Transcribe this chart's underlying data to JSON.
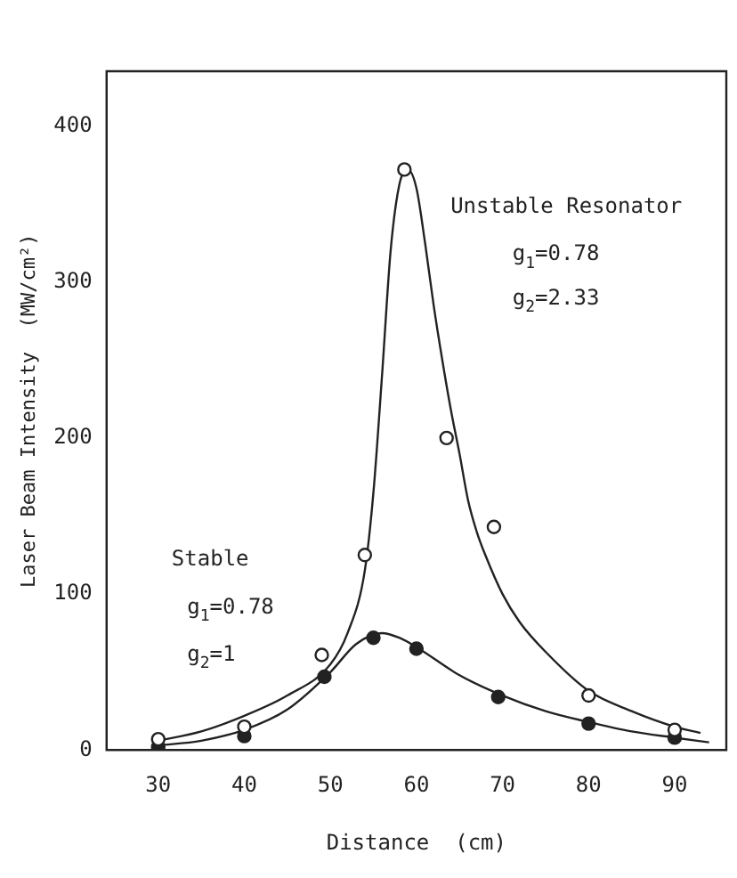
{
  "chart_data": {
    "type": "scatter",
    "xlabel": "Distance  (cm)",
    "ylabel": "Laser Beam Intensity  (MW/cm²)",
    "xlim": [
      24,
      96
    ],
    "xticks": [
      30,
      40,
      50,
      60,
      70,
      80,
      90
    ],
    "ylim": [
      0,
      435
    ],
    "yticks": [
      0,
      100,
      200,
      300,
      400
    ],
    "grid": false,
    "legend": false,
    "series": [
      {
        "type": "scatter",
        "marker": "circle",
        "color": "#ffffff",
        "x": [
          30,
          40,
          49,
          54,
          58.6,
          63.5,
          69,
          80,
          90
        ],
        "values": [
          7,
          15,
          61,
          125,
          372,
          200,
          143,
          35,
          13
        ]
      },
      {
        "type": "scatter",
        "marker": "circle",
        "color": "#222222",
        "x": [
          30,
          40,
          49.3,
          55,
          60,
          69.5,
          80,
          90
        ],
        "values": [
          2,
          9,
          47,
          72,
          65,
          34,
          17,
          8
        ]
      },
      {
        "type": "line",
        "marker": "none",
        "color": "#222222",
        "x": [
          30,
          35,
          40,
          45,
          50,
          52,
          54,
          55,
          56,
          57,
          58,
          59,
          60,
          61,
          62,
          63,
          64,
          65,
          66,
          67,
          68,
          70,
          72,
          75,
          80,
          85,
          90,
          93
        ],
        "values": [
          6,
          12,
          22,
          35,
          55,
          75,
          115,
          165,
          240,
          320,
          362,
          372,
          360,
          325,
          285,
          250,
          218,
          190,
          160,
          140,
          125,
          100,
          82,
          63,
          38,
          25,
          15,
          11
        ]
      },
      {
        "type": "line",
        "marker": "none",
        "color": "#222222",
        "x": [
          30,
          35,
          40,
          45,
          50,
          53,
          56,
          58,
          60,
          65,
          70,
          75,
          80,
          85,
          90,
          94
        ],
        "values": [
          3,
          6,
          13,
          26,
          50,
          68,
          75,
          72,
          66,
          48,
          35,
          25,
          18,
          12,
          8,
          5
        ]
      }
    ],
    "annotations": [
      "Unstable Resonator",
      "g$_{1}$=0.78",
      "g$_{2}$=2.33",
      "Stable",
      "g$_{1}$=0.78",
      "g$_{2}$=1"
    ]
  }
}
